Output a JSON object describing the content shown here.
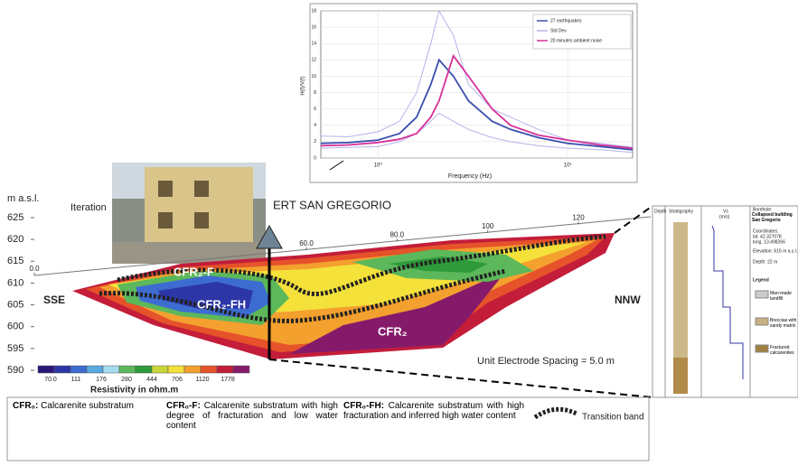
{
  "chart_data": {
    "type": "line",
    "y_label": "H(f)/V(f)",
    "x_label": "Frequency (Hz)",
    "log_x": true,
    "xlim": [
      0.5,
      22
    ],
    "xticks": [
      {
        "value": 1,
        "label": "10⁰"
      },
      {
        "value": 10,
        "label": "10¹"
      }
    ],
    "ylim": [
      0,
      18
    ],
    "yticks": [
      0,
      2,
      4,
      6,
      8,
      10,
      12,
      14,
      16,
      18
    ],
    "grid": true,
    "x": [
      0.5,
      0.7,
      1,
      1.3,
      1.6,
      1.9,
      2.1,
      2.5,
      3,
      4,
      5,
      7,
      10,
      15,
      22
    ],
    "series": [
      {
        "name": "27 earthquakes",
        "color": "#3a4fb0",
        "values": [
          1.8,
          1.9,
          2.2,
          3,
          5,
          9,
          12,
          10,
          7,
          4.5,
          3.5,
          2.5,
          1.8,
          1.4,
          1.0
        ]
      },
      {
        "name": "Std Dev",
        "color": "#b4b4e8",
        "values": [
          2.7,
          2.6,
          3.2,
          4.5,
          8,
          14,
          18,
          15,
          9,
          6,
          5,
          3.5,
          2.2,
          1.8,
          1.3
        ]
      },
      {
        "color": "#b4b4e8",
        "values": [
          1.2,
          1.3,
          1.4,
          2,
          3,
          4.5,
          5.5,
          4.5,
          3.5,
          2.5,
          2,
          1.5,
          1.2,
          1,
          0.7
        ]
      },
      {
        "name": "20 minutes ambient noise",
        "color": "#d6309a",
        "values": [
          1.5,
          1.6,
          1.9,
          2.3,
          3,
          5,
          7,
          12.5,
          10,
          6,
          4,
          2.8,
          2.2,
          1.6,
          1.2
        ]
      }
    ]
  },
  "section": {
    "title": "ERT SAN GREGORIO",
    "photo_label": "Iteration",
    "elevation_label": "m a.s.l.",
    "ylim": [
      590,
      625
    ],
    "yticks": [
      590,
      595,
      600,
      605,
      610,
      615,
      620,
      625
    ],
    "xlim": [
      0,
      120
    ],
    "xticks": [
      {
        "value": 0,
        "label": "0.0"
      },
      {
        "value": 60,
        "label": "60.0"
      },
      {
        "value": 80,
        "label": "80.0"
      },
      100,
      120
    ],
    "left_label": "SSE",
    "right_label": "NNW",
    "spacing": "Unit Electrode Spacing = 5.0 m",
    "zones": [
      "CFR₂-F",
      "CFR₂-FH",
      "CFR₂"
    ],
    "scale_title": "Resistivity in ohm.m",
    "scale_colors": [
      "#2a1877",
      "#2d36a6",
      "#3d6cd0",
      "#5aa8e2",
      "#a6dcef",
      "#5cb85a",
      "#2e9a3a",
      "#c9d63a",
      "#f4e13a",
      "#f3a02f",
      "#e6522a",
      "#c31d3a",
      "#861a6a"
    ],
    "scale_labels": [
      "70.0",
      "111",
      "176",
      "280",
      "444",
      "706",
      "1120",
      "1778"
    ]
  },
  "borehole": {
    "headers": [
      "Depth",
      "Stratigraphy",
      "Vs"
    ],
    "unit": "(m/s)",
    "name_label": "Borehole:",
    "name": "Collapsed building San Gregorio",
    "coord_label": "Coordinates:",
    "lat": "lat. 42.327078",
    "long": "long. 13.498266",
    "elevation": "Elevation: 615 m a.s.l.",
    "depth": "Depth: 22 m",
    "legend_title": "Legend",
    "legend": [
      "Man-made landfill",
      "Breccias with sandy matrix",
      "Fractured calcarenites"
    ]
  },
  "legend": [
    {
      "key": "CFR₀:",
      "text": "Calcarenite substratum"
    },
    {
      "key": "CFR₀-F:",
      "text": "Calcarenite substratum with high degree of fracturation and low water content"
    },
    {
      "key": "CFR₀-FH:",
      "text": "Calcarenite substratum with high fracturation and inferred high water content"
    },
    {
      "text": "Transition band"
    }
  ]
}
